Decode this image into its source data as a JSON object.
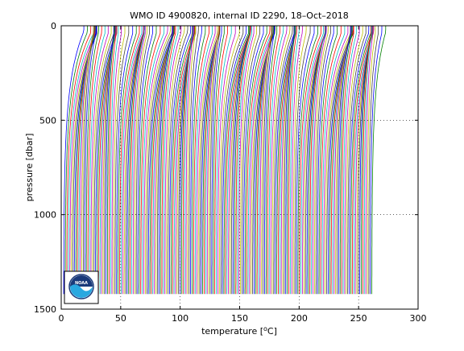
{
  "chart_data": {
    "type": "line",
    "title": "WMO ID 4900820, internal ID 2290, 18–Oct–2018",
    "xlabel": "temperature [°C]",
    "xlabel_parts": {
      "before": "temperature [",
      "sup": "o",
      "after": "C]"
    },
    "ylabel": "pressure [dbar]",
    "xlim": [
      0,
      300
    ],
    "ylim": [
      1500,
      0
    ],
    "y_reversed": true,
    "xticks": [
      0,
      50,
      100,
      150,
      200,
      250,
      300
    ],
    "yticks": [
      0,
      500,
      1000,
      1500
    ],
    "grid": "dotted",
    "profile_count": 205,
    "first_offset": 2,
    "offset_step": 1.27,
    "max_pressure": 1420,
    "colors": [
      "#0000ff",
      "#008000",
      "#ff0000",
      "#00bfbf",
      "#bf00bf",
      "#bfbf00",
      "#404040"
    ],
    "logo_text": "NOAA"
  }
}
